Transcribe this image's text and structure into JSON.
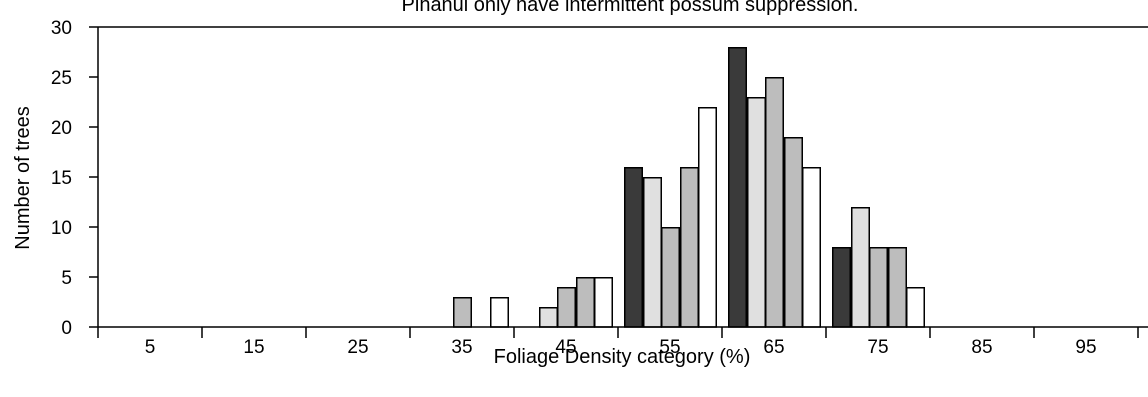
{
  "chart_data": {
    "type": "bar",
    "title": "Pihanui only have intermittent possum suppression.",
    "xlabel": "Foliage Density category (%)",
    "ylabel": "Number of trees",
    "ylim": [
      0,
      30
    ],
    "yticks": [
      "0",
      "5",
      "10",
      "15",
      "20",
      "25",
      "30"
    ],
    "categories": [
      "5",
      "15",
      "25",
      "35",
      "45",
      "55",
      "65",
      "75",
      "85",
      "95"
    ],
    "grid": false,
    "legend": "none",
    "series": [
      {
        "color": "#3a3a3a",
        "values": [
          0,
          0,
          0,
          0,
          0,
          16,
          28,
          8,
          0,
          0
        ]
      },
      {
        "color": "#e0e0e0",
        "values": [
          0,
          0,
          0,
          0,
          2,
          15,
          23,
          12,
          0,
          0
        ]
      },
      {
        "color": "#bdbdbd",
        "values": [
          0,
          0,
          0,
          3,
          4,
          10,
          25,
          8,
          0,
          0
        ]
      },
      {
        "color": "#bdbdbd",
        "values": [
          0,
          0,
          0,
          0,
          5,
          16,
          19,
          8,
          0,
          0
        ]
      },
      {
        "color": "#ffffff",
        "values": [
          0,
          0,
          0,
          3,
          5,
          22,
          16,
          4,
          0,
          0
        ]
      }
    ]
  }
}
